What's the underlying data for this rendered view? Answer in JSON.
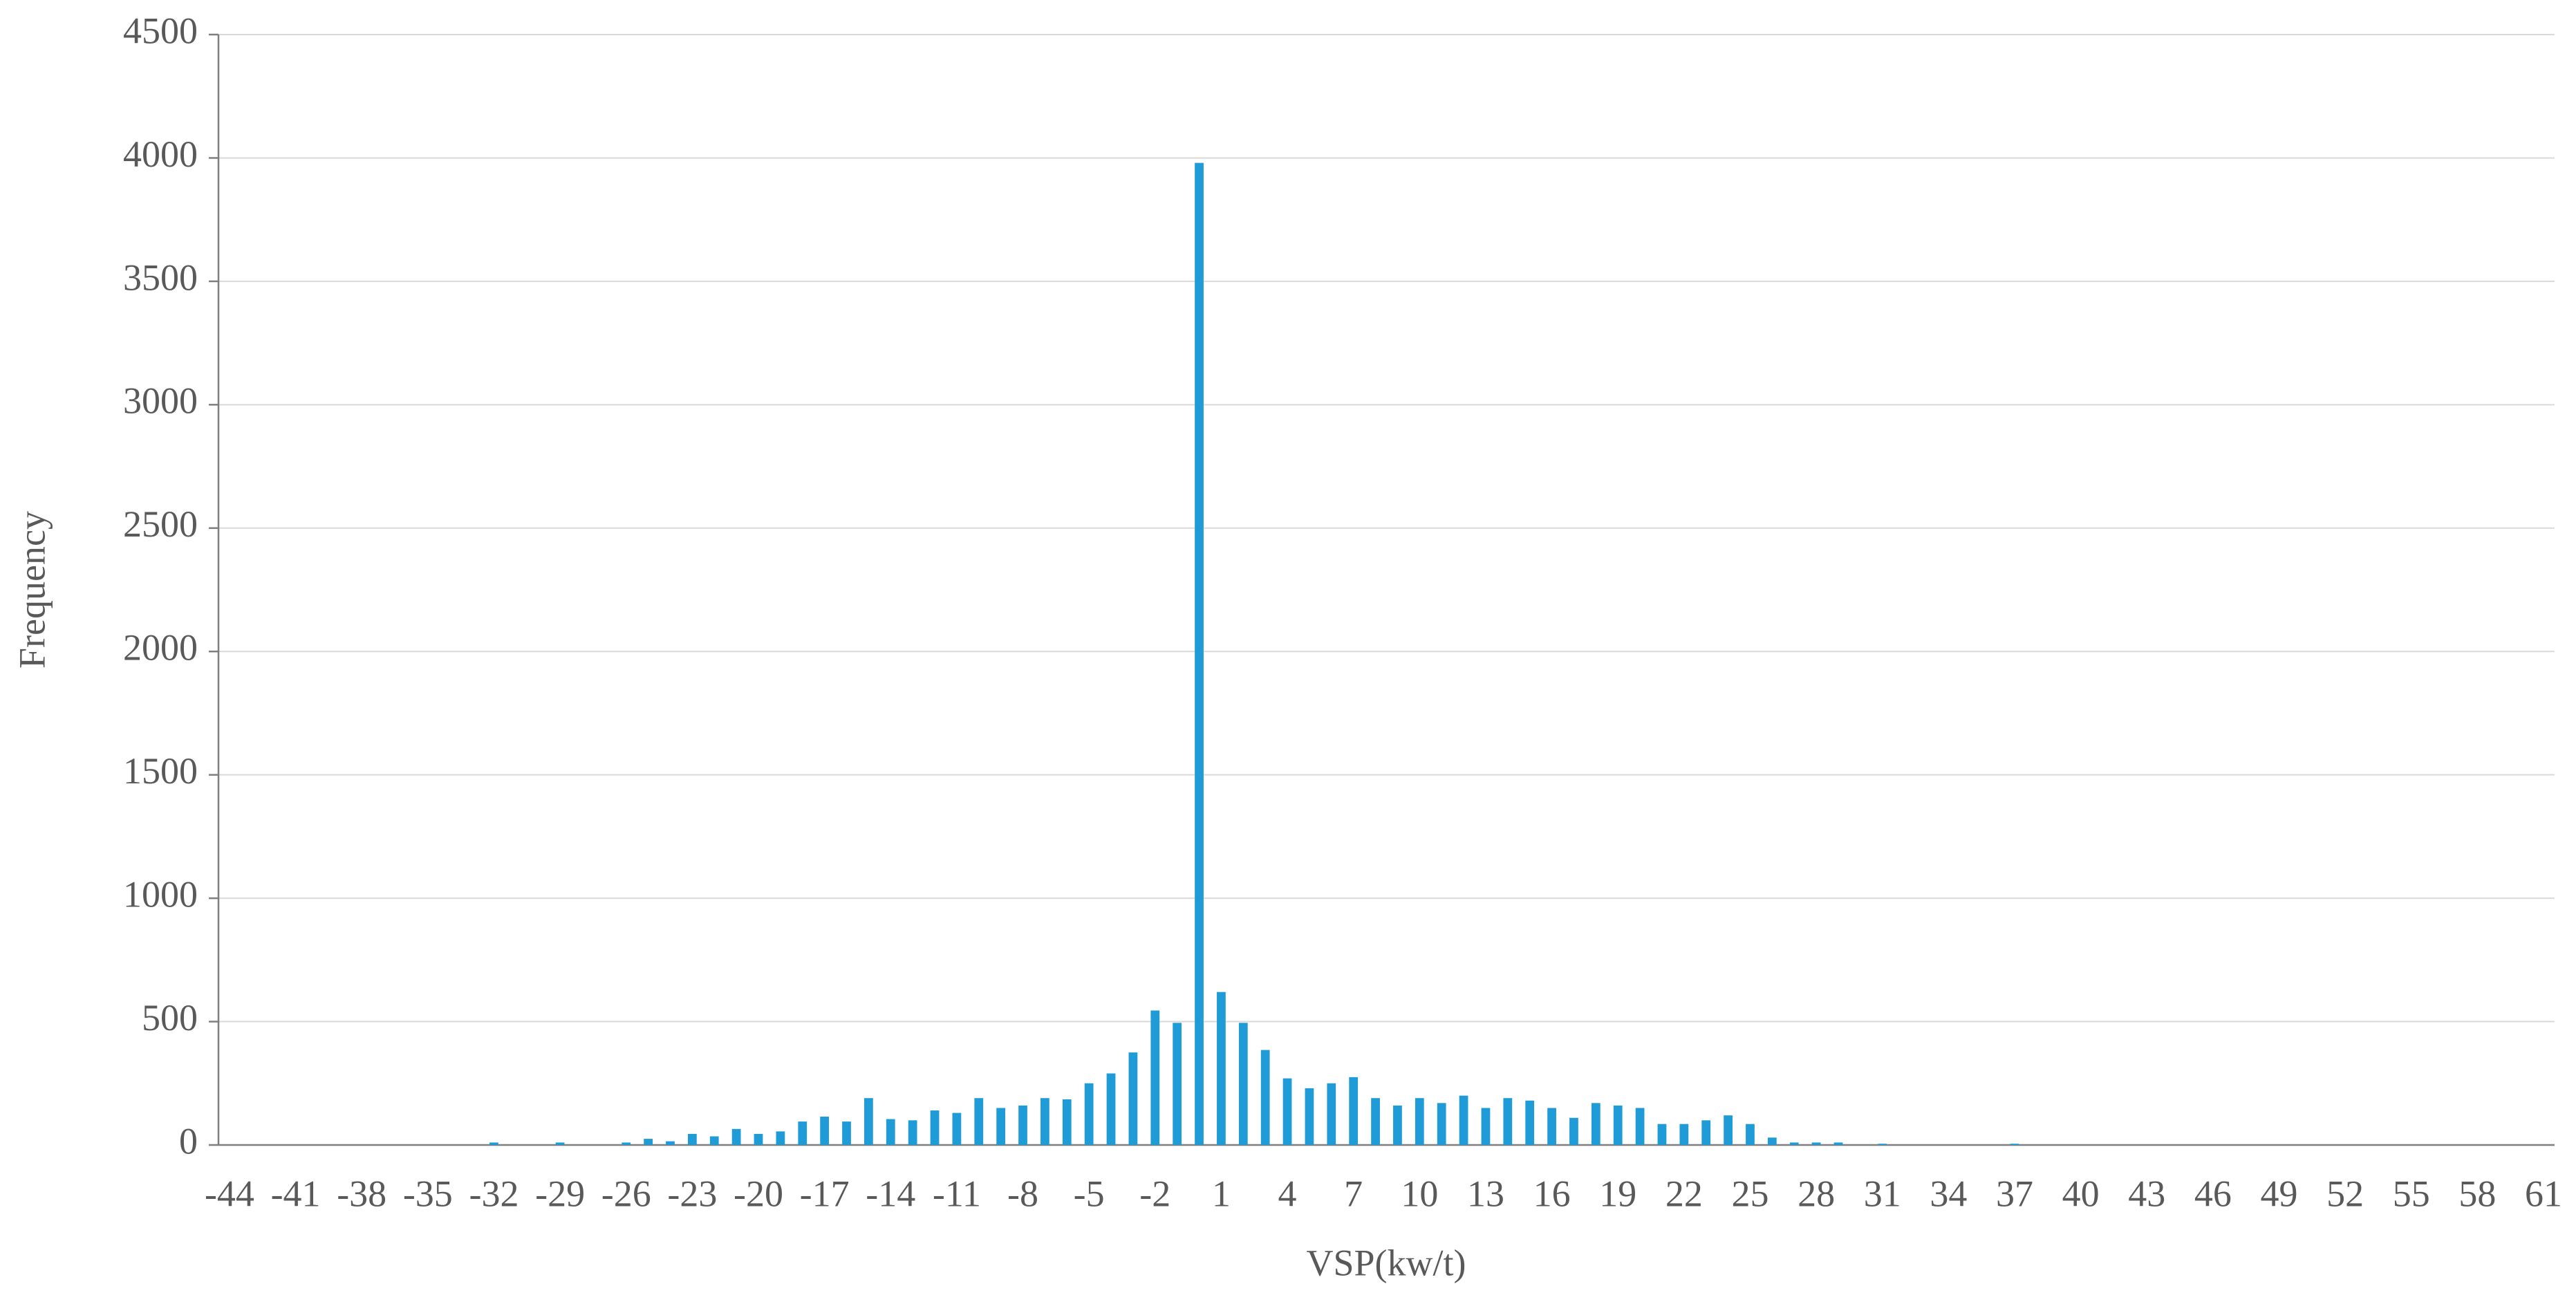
{
  "chart_data": {
    "type": "bar",
    "x_label": "VSP(kw/t)",
    "y_label": "Frequency",
    "categories": [
      -44,
      null,
      null,
      -41,
      null,
      null,
      -38,
      null,
      null,
      -35,
      null,
      null,
      -32,
      null,
      null,
      -29,
      null,
      null,
      -26,
      null,
      null,
      -23,
      null,
      null,
      -20,
      null,
      null,
      -17,
      null,
      null,
      -14,
      null,
      null,
      -11,
      null,
      null,
      -8,
      null,
      null,
      -5,
      null,
      null,
      -2,
      null,
      null,
      1,
      null,
      null,
      4,
      null,
      null,
      7,
      null,
      null,
      10,
      null,
      null,
      13,
      null,
      null,
      16,
      null,
      null,
      19,
      null,
      null,
      22,
      null,
      null,
      25,
      null,
      null,
      28,
      null,
      null,
      31,
      null,
      null,
      34,
      null,
      null,
      37,
      null,
      null,
      40,
      null,
      null,
      43,
      null,
      null,
      46,
      null,
      null,
      49,
      null,
      null,
      52,
      null,
      null,
      55,
      null,
      null,
      58,
      null,
      null,
      61
    ],
    "values": [
      0,
      0,
      0,
      0,
      0,
      0,
      0,
      0,
      0,
      0,
      0,
      0,
      10,
      0,
      0,
      10,
      0,
      0,
      10,
      25,
      15,
      45,
      35,
      65,
      45,
      55,
      95,
      115,
      95,
      190,
      105,
      100,
      140,
      130,
      190,
      150,
      160,
      190,
      185,
      250,
      290,
      375,
      545,
      495,
      3980,
      620,
      495,
      385,
      270,
      230,
      250,
      275,
      190,
      160,
      190,
      170,
      200,
      150,
      190,
      180,
      150,
      110,
      170,
      160,
      150,
      85,
      85,
      100,
      120,
      85,
      30,
      10,
      10,
      10,
      0,
      5,
      0,
      0,
      0,
      0,
      0,
      5,
      0,
      0,
      0,
      0,
      0,
      0,
      0,
      0,
      0,
      0,
      0,
      0,
      0,
      0,
      0,
      0,
      0,
      0,
      0,
      0,
      0,
      0,
      0,
      0
    ],
    "color": "#1f9bd7",
    "ylim": [
      0,
      4500
    ],
    "yticks": [
      0,
      500,
      1000,
      1500,
      2000,
      2500,
      3000,
      3500,
      4000,
      4500
    ],
    "grid": true
  }
}
